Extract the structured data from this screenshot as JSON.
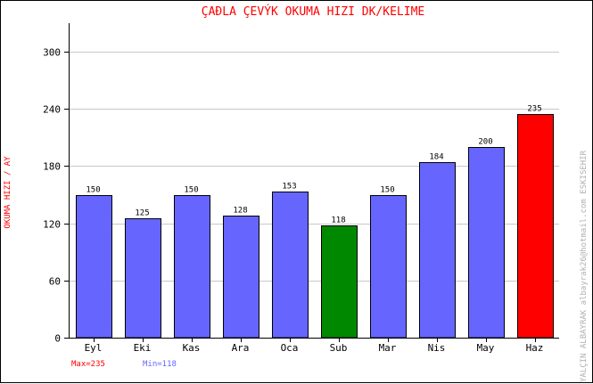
{
  "chart_data": {
    "type": "bar",
    "title": "ÇAÐLA ÇEVÝK   OKUMA HIZI  DK/KELIME",
    "ylabel": "OKUMA HIZI / AY",
    "xlabel": "",
    "categories": [
      "Eyl",
      "Eki",
      "Kas",
      "Ara",
      "Oca",
      "Sub",
      "Mar",
      "Nis",
      "May",
      "Haz"
    ],
    "values": [
      150,
      125,
      150,
      128,
      153,
      118,
      150,
      184,
      200,
      235
    ],
    "ylim": [
      0,
      330
    ],
    "yticks": [
      0,
      60,
      120,
      180,
      240,
      300
    ],
    "grid": true,
    "colors": {
      "default": "#6666ff",
      "max": "#ff0000",
      "min": "#008800",
      "title": "#ff0000",
      "ylabel": "#ff0000",
      "max_note": "#ff0000",
      "min_note": "#6666ff",
      "grid": "#c8c8c8"
    },
    "max_note": "Max=235",
    "min_note": "Min=118",
    "watermark": "YALÇIN ALBAYRAK  albayrak26@hotmail.com  ESKISEHIR"
  }
}
